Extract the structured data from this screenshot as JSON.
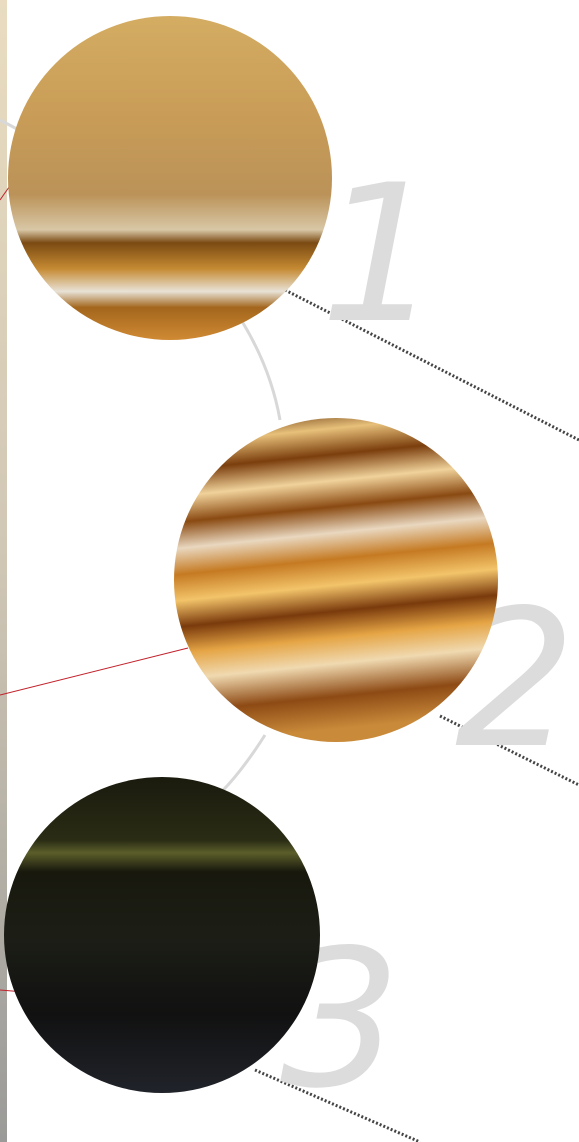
{
  "steps": [
    {
      "label": "1"
    },
    {
      "label": "2"
    },
    {
      "label": "3"
    }
  ]
}
